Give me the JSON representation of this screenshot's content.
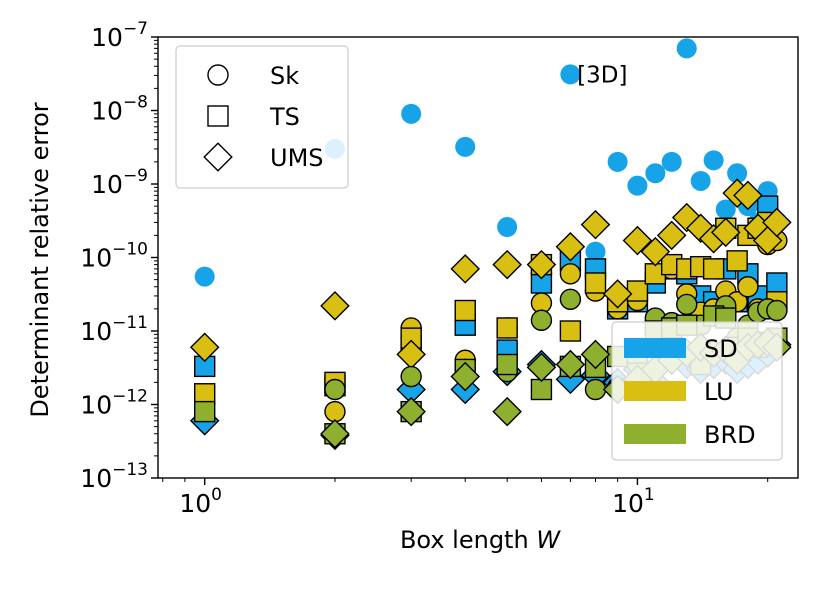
{
  "chart_data": {
    "type": "scatter",
    "title": "",
    "xlabel": "Box length W",
    "xlabel_prefix": "Box length ",
    "xlabel_var": "W",
    "ylabel": "Determinant relative error",
    "xscale": "log",
    "yscale": "log",
    "xlim": [
      0.78,
      23.5
    ],
    "ylim": [
      1e-13,
      1e-07
    ],
    "x_ticks": [
      {
        "value": 1,
        "base": "10",
        "exp": "0"
      },
      {
        "value": 10,
        "base": "10",
        "exp": "1"
      }
    ],
    "y_ticks": [
      {
        "value": 1e-13,
        "base": "10",
        "exp": "−13"
      },
      {
        "value": 1e-12,
        "base": "10",
        "exp": "−12"
      },
      {
        "value": 1e-11,
        "base": "10",
        "exp": "−11"
      },
      {
        "value": 1e-10,
        "base": "10",
        "exp": "−10"
      },
      {
        "value": 1e-09,
        "base": "10",
        "exp": "−9"
      },
      {
        "value": 1e-08,
        "base": "10",
        "exp": "−8"
      },
      {
        "value": 1e-07,
        "base": "10",
        "exp": "−7"
      }
    ],
    "annotation": {
      "text": "[3D]",
      "x": 7.9,
      "y": 3.1e-08
    },
    "marker_legend": [
      {
        "label": "Sk",
        "marker": "circle"
      },
      {
        "label": "TS",
        "marker": "square"
      },
      {
        "label": "UMS",
        "marker": "diamond"
      }
    ],
    "color_legend": [
      {
        "label": "SD",
        "color": "#16a3e8"
      },
      {
        "label": "LU",
        "color": "#d9bf12"
      },
      {
        "label": "BRD",
        "color": "#8eb02e"
      }
    ],
    "series": [
      {
        "name": "SD-Sk",
        "method": "SD",
        "marker": "circle",
        "color": "#16a3e8",
        "points": [
          [
            1,
            5.5e-11
          ],
          [
            2,
            3e-09
          ],
          [
            3,
            9e-09
          ],
          [
            4,
            3.2e-09
          ],
          [
            5,
            2.6e-10
          ],
          [
            7,
            3.1e-08
          ],
          [
            8,
            1.2e-10
          ],
          [
            9,
            2e-09
          ],
          [
            10,
            9.5e-10
          ],
          [
            11,
            1.4e-09
          ],
          [
            12,
            2e-09
          ],
          [
            13,
            7e-08
          ],
          [
            14,
            1.1e-09
          ],
          [
            15,
            2.1e-09
          ],
          [
            16,
            4.5e-10
          ],
          [
            17,
            1.4e-09
          ],
          [
            18,
            5e-10
          ],
          [
            19,
            3e-10
          ],
          [
            20,
            8e-10
          ]
        ]
      },
      {
        "name": "SD-TS",
        "method": "SD",
        "marker": "square",
        "color": "#16a3e8",
        "points": [
          [
            1,
            3.3e-12
          ],
          [
            2,
            1.8e-12
          ],
          [
            3,
            6.5e-12
          ],
          [
            4,
            1.2e-11
          ],
          [
            5,
            5.5e-12
          ],
          [
            6,
            4.5e-11
          ],
          [
            7,
            9e-11
          ],
          [
            8,
            7e-11
          ],
          [
            9,
            2e-11
          ],
          [
            10,
            2.5e-11
          ],
          [
            11,
            4.5e-11
          ],
          [
            12,
            7e-11
          ],
          [
            13,
            6e-11
          ],
          [
            14,
            3e-11
          ],
          [
            15,
            2.5e-11
          ],
          [
            16,
            7e-11
          ],
          [
            17,
            2.5e-11
          ],
          [
            18,
            6e-11
          ],
          [
            19,
            3e-11
          ],
          [
            20,
            5e-10
          ],
          [
            21,
            4.5e-11
          ]
        ]
      },
      {
        "name": "SD-UMS",
        "method": "SD",
        "marker": "diamond",
        "color": "#16a3e8",
        "points": [
          [
            1,
            6e-13
          ],
          [
            2,
            3.8e-13
          ],
          [
            3,
            1.6e-12
          ],
          [
            4,
            1.6e-12
          ],
          [
            5,
            2.8e-12
          ],
          [
            6,
            3.5e-12
          ],
          [
            7,
            2.2e-12
          ],
          [
            8,
            2.5e-12
          ],
          [
            9,
            2e-12
          ],
          [
            10,
            3e-12
          ],
          [
            11,
            2e-12
          ],
          [
            12,
            4e-12
          ],
          [
            13,
            3.5e-12
          ],
          [
            14,
            3e-12
          ],
          [
            15,
            3.5e-12
          ],
          [
            16,
            4e-12
          ],
          [
            17,
            3e-12
          ],
          [
            18,
            3.5e-12
          ],
          [
            19,
            4e-12
          ],
          [
            20,
            5e-12
          ],
          [
            21,
            6.5e-12
          ]
        ]
      },
      {
        "name": "LU-Sk",
        "method": "LU",
        "marker": "circle",
        "color": "#d9bf12",
        "points": [
          [
            2,
            8e-13
          ],
          [
            3,
            1.1e-11
          ],
          [
            4,
            4e-12
          ],
          [
            5,
            1.1e-11
          ],
          [
            6,
            2.4e-11
          ],
          [
            7,
            6e-11
          ],
          [
            8,
            3.5e-11
          ],
          [
            9,
            2e-11
          ],
          [
            10,
            2.6e-11
          ],
          [
            11,
            1.3e-11
          ],
          [
            12,
            7e-11
          ],
          [
            13,
            3.2e-11
          ],
          [
            14,
            1.8e-11
          ],
          [
            15,
            2e-11
          ],
          [
            16,
            3.5e-11
          ],
          [
            17,
            2.5e-11
          ],
          [
            18,
            4e-11
          ],
          [
            19,
            2e-11
          ],
          [
            20,
            1.5e-10
          ],
          [
            21,
            1.7e-10
          ]
        ]
      },
      {
        "name": "LU-TS",
        "method": "LU",
        "marker": "square",
        "color": "#d9bf12",
        "points": [
          [
            1,
            1.4e-12
          ],
          [
            2,
            2e-12
          ],
          [
            3,
            8e-12
          ],
          [
            4,
            1.9e-11
          ],
          [
            5,
            1.1e-11
          ],
          [
            6,
            8e-11
          ],
          [
            7,
            1e-11
          ],
          [
            8,
            4.5e-11
          ],
          [
            9,
            2.5e-11
          ],
          [
            10,
            3.5e-11
          ],
          [
            11,
            6e-11
          ],
          [
            12,
            8e-11
          ],
          [
            13,
            7e-11
          ],
          [
            14,
            7.5e-11
          ],
          [
            15,
            7e-11
          ],
          [
            16,
            2.5e-10
          ],
          [
            17,
            9e-11
          ],
          [
            18,
            2e-10
          ],
          [
            19,
            2.5e-10
          ],
          [
            20,
            3e-10
          ],
          [
            21,
            2.5e-11
          ]
        ]
      },
      {
        "name": "LU-UMS",
        "method": "LU",
        "marker": "diamond",
        "color": "#d9bf12",
        "points": [
          [
            1,
            6e-12
          ],
          [
            2,
            2.2e-11
          ],
          [
            3,
            4.8e-12
          ],
          [
            4,
            7e-11
          ],
          [
            5,
            8e-11
          ],
          [
            6,
            8e-11
          ],
          [
            7,
            1.4e-10
          ],
          [
            8,
            2.8e-10
          ],
          [
            9,
            3.2e-11
          ],
          [
            10,
            1.7e-10
          ],
          [
            11,
            1.2e-10
          ],
          [
            12,
            2e-10
          ],
          [
            13,
            3.5e-10
          ],
          [
            14,
            2.5e-10
          ],
          [
            15,
            1.8e-10
          ],
          [
            16,
            2.2e-10
          ],
          [
            17,
            7.5e-10
          ],
          [
            18,
            7e-10
          ],
          [
            19,
            2.5e-10
          ],
          [
            20,
            1.7e-10
          ],
          [
            21,
            3e-10
          ]
        ]
      },
      {
        "name": "BRD-Sk",
        "method": "BRD",
        "marker": "circle",
        "color": "#8eb02e",
        "points": [
          [
            2,
            1.6e-12
          ],
          [
            3,
            2.4e-12
          ],
          [
            4,
            3e-12
          ],
          [
            5,
            2.8e-12
          ],
          [
            6,
            1.4e-11
          ],
          [
            7,
            2.7e-11
          ],
          [
            8,
            1.6e-12
          ],
          [
            9,
            1.7e-12
          ],
          [
            10,
            3.5e-12
          ],
          [
            11,
            1.5e-11
          ],
          [
            12,
            1.3e-11
          ],
          [
            13,
            2.3e-11
          ],
          [
            14,
            1.2e-11
          ],
          [
            15,
            1.6e-11
          ],
          [
            16,
            2.2e-11
          ],
          [
            17,
            8e-12
          ],
          [
            18,
            1.2e-11
          ],
          [
            19,
            1.8e-11
          ],
          [
            20,
            2e-11
          ],
          [
            21,
            1.9e-11
          ]
        ]
      },
      {
        "name": "BRD-TS",
        "method": "BRD",
        "marker": "square",
        "color": "#8eb02e",
        "points": [
          [
            1,
            8e-13
          ],
          [
            2,
            4e-13
          ],
          [
            3,
            8e-13
          ],
          [
            4,
            3e-12
          ],
          [
            5,
            3.5e-12
          ],
          [
            6,
            1.6e-12
          ],
          [
            7,
            3.3e-12
          ],
          [
            8,
            3.2e-12
          ],
          [
            9,
            4.5e-12
          ],
          [
            10,
            5e-12
          ],
          [
            11,
            1e-11
          ],
          [
            12,
            1.1e-11
          ],
          [
            13,
            1.2e-11
          ],
          [
            14,
            3.5e-12
          ],
          [
            15,
            1.6e-11
          ],
          [
            16,
            1.5e-11
          ],
          [
            17,
            6e-12
          ],
          [
            18,
            8e-12
          ],
          [
            19,
            6e-12
          ],
          [
            20,
            7e-12
          ],
          [
            21,
            8e-12
          ]
        ]
      },
      {
        "name": "BRD-UMS",
        "method": "BRD",
        "marker": "diamond",
        "color": "#8eb02e",
        "points": [
          [
            2,
            4e-13
          ],
          [
            3,
            8e-13
          ],
          [
            4,
            2.4e-12
          ],
          [
            5,
            8e-13
          ],
          [
            6,
            3.2e-12
          ],
          [
            7,
            3.5e-12
          ],
          [
            8,
            4.8e-12
          ],
          [
            9,
            1.6e-12
          ],
          [
            10,
            2.2e-12
          ],
          [
            11,
            3e-12
          ],
          [
            12,
            4e-12
          ],
          [
            13,
            5e-12
          ],
          [
            14,
            6e-12
          ],
          [
            15,
            5e-12
          ],
          [
            16,
            5.5e-12
          ],
          [
            17,
            4e-12
          ],
          [
            18,
            6e-12
          ],
          [
            19,
            6.5e-12
          ],
          [
            20,
            7e-12
          ],
          [
            21,
            6e-12
          ]
        ]
      }
    ]
  }
}
